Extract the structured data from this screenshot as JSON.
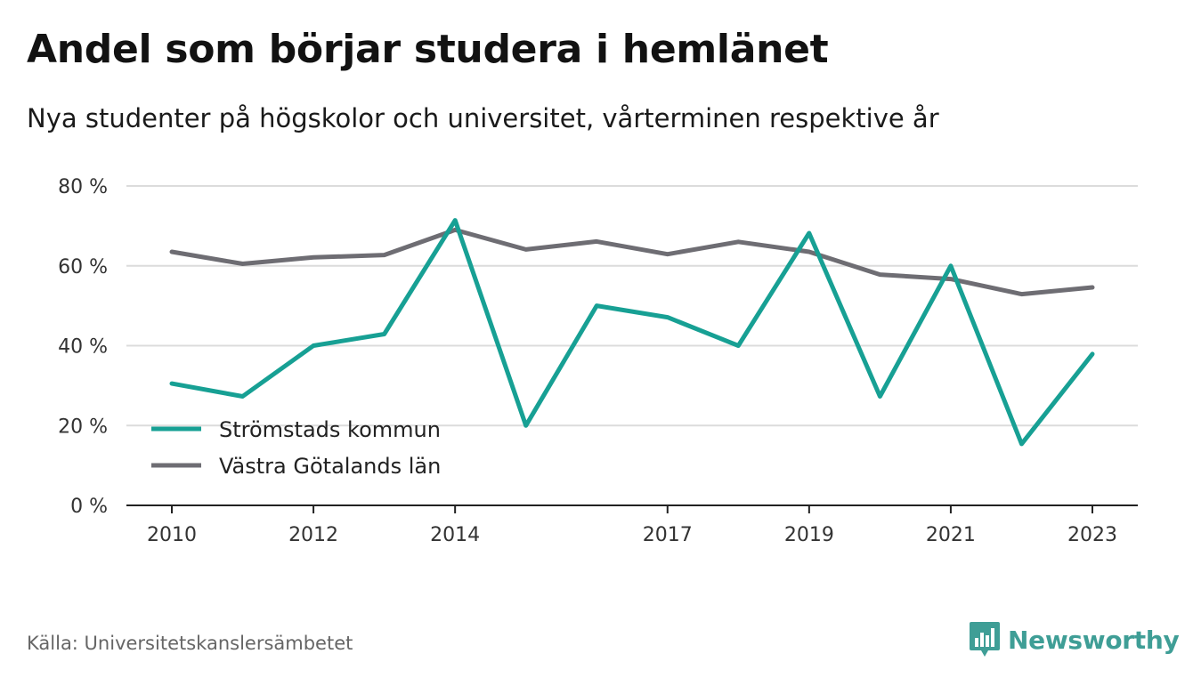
{
  "header": {
    "title": "Andel som börjar studera i hemlänet",
    "subtitle": "Nya studenter på högskolor och universitet, vårterminen respektive år"
  },
  "footer": {
    "source": "Källa: Universitetskanslersämbetet",
    "brand": "Newsworthy",
    "brand_icon": "bar-chart-bubble-icon",
    "brand_color": "#3f9e96"
  },
  "chart_data": {
    "type": "line",
    "x": [
      2010,
      2011,
      2012,
      2013,
      2014,
      2015,
      2016,
      2017,
      2018,
      2019,
      2020,
      2021,
      2022,
      2023
    ],
    "x_tick_labels": [
      "2010",
      "2012",
      "2014",
      "2017",
      "2019",
      "2021",
      "2023"
    ],
    "y_tick_labels": [
      "0 %",
      "20 %",
      "40 %",
      "60 %",
      "80 %"
    ],
    "ylim": [
      0,
      80
    ],
    "grid": "horizontal",
    "legend_position": "bottom-left",
    "series": [
      {
        "name": "Strömstads kommun",
        "color": "#17a094",
        "values": [
          30.5,
          27.3,
          40.0,
          42.9,
          71.4,
          20.0,
          50.0,
          47.1,
          40.0,
          68.2,
          27.3,
          60.0,
          15.4,
          37.9
        ]
      },
      {
        "name": "Västra Götalands län",
        "color": "#6e6d73",
        "values": [
          63.5,
          60.5,
          62.1,
          62.7,
          69.0,
          64.1,
          66.1,
          62.9,
          66.0,
          63.5,
          57.8,
          56.7,
          52.9,
          54.6
        ]
      }
    ]
  }
}
